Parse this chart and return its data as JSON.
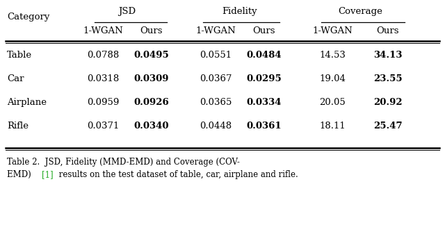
{
  "caption_ref_color": "#22aa22",
  "group_headers": [
    "JSD",
    "Fidelity",
    "Coverage"
  ],
  "sub_headers": [
    "1-WGAN",
    "Ours",
    "1-WGAN",
    "Ours",
    "1-WGAN",
    "Ours"
  ],
  "row_header": "Category",
  "categories": [
    "Table",
    "Car",
    "Airplane",
    "Rifle"
  ],
  "data": [
    [
      "0.0788",
      "0.0495",
      "0.0551",
      "0.0484",
      "14.53",
      "34.13"
    ],
    [
      "0.0318",
      "0.0309",
      "0.0367",
      "0.0295",
      "19.04",
      "23.55"
    ],
    [
      "0.0959",
      "0.0926",
      "0.0365",
      "0.0334",
      "20.05",
      "20.92"
    ],
    [
      "0.0371",
      "0.0340",
      "0.0448",
      "0.0361",
      "18.11",
      "25.47"
    ]
  ],
  "bold_cols": [
    1,
    3,
    5
  ],
  "background_color": "#ffffff",
  "font_size": 9.5,
  "caption_font_size": 8.5,
  "caption_line1": "Table 2.  JSD, Fidelity (MMD-EMD) and Coverage (COV-",
  "caption_line2_pre": "EMD) ",
  "caption_ref": "[1]",
  "caption_line2_post": " results on the test dataset of table, car, airplane and rifle."
}
